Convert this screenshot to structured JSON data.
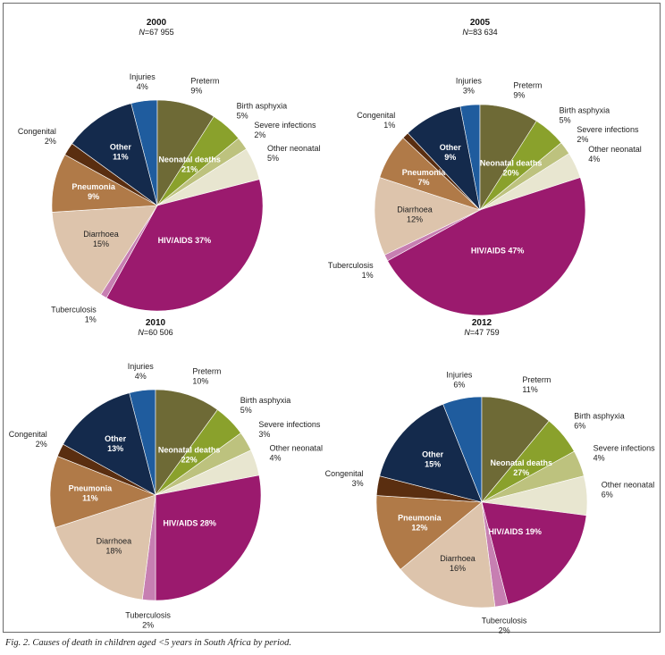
{
  "caption": "Fig. 2. Causes of death in children aged <5 years in South Africa by period.",
  "colors": {
    "Injuries": "#1f5c9e",
    "Preterm": "#6e6a36",
    "Birth asphyxia": "#8aa12c",
    "Severe infections": "#bdc27e",
    "Other neonatal": "#e8e6d0",
    "HIV/AIDS": "#9b1a6e",
    "Tuberculosis": "#c77fb2",
    "Diarrhoea": "#ddc4ac",
    "Pneumonia": "#b07a48",
    "Congenital": "#5a2e10",
    "Other": "#142a4c",
    "outline": "#ffffff"
  },
  "chart_data": [
    {
      "type": "pie",
      "title": "2000",
      "n_prefix": "N",
      "n_value": "=67 955",
      "slices": [
        {
          "name": "Injuries",
          "value": 4,
          "label": "4%"
        },
        {
          "name": "Preterm",
          "value": 9,
          "label": "9%"
        },
        {
          "name": "Birth asphyxia",
          "value": 5,
          "label": "5%"
        },
        {
          "name": "Severe infections",
          "value": 2,
          "label": "2%"
        },
        {
          "name": "Other neonatal",
          "value": 5,
          "label": "5%"
        },
        {
          "name": "HIV/AIDS",
          "value": 37,
          "label": "37%"
        },
        {
          "name": "Tuberculosis",
          "value": 1,
          "label": "1%"
        },
        {
          "name": "Diarrhoea",
          "value": 15,
          "label": "15%"
        },
        {
          "name": "Pneumonia",
          "value": 9,
          "label": "9%"
        },
        {
          "name": "Congenital",
          "value": 2,
          "label": "2%"
        },
        {
          "name": "Other",
          "value": 11,
          "label": "11%"
        }
      ],
      "group_label": {
        "name": "Neonatal deaths",
        "value": "21%"
      }
    },
    {
      "type": "pie",
      "title": "2005",
      "n_prefix": "N",
      "n_value": "=83 634",
      "slices": [
        {
          "name": "Injuries",
          "value": 3,
          "label": "3%"
        },
        {
          "name": "Preterm",
          "value": 9,
          "label": "9%"
        },
        {
          "name": "Birth asphyxia",
          "value": 5,
          "label": "5%"
        },
        {
          "name": "Severe infections",
          "value": 2,
          "label": "2%"
        },
        {
          "name": "Other neonatal",
          "value": 4,
          "label": "4%"
        },
        {
          "name": "HIV/AIDS",
          "value": 47,
          "label": "47%"
        },
        {
          "name": "Tuberculosis",
          "value": 1,
          "label": "1%"
        },
        {
          "name": "Diarrhoea",
          "value": 12,
          "label": "12%"
        },
        {
          "name": "Pneumonia",
          "value": 7,
          "label": "7%"
        },
        {
          "name": "Congenital",
          "value": 1,
          "label": "1%"
        },
        {
          "name": "Other",
          "value": 9,
          "label": "9%"
        }
      ],
      "group_label": {
        "name": "Neonatal deaths",
        "value": "20%"
      }
    },
    {
      "type": "pie",
      "title": "2010",
      "n_prefix": "N",
      "n_value": "=60 506",
      "slices": [
        {
          "name": "Injuries",
          "value": 4,
          "label": "4%"
        },
        {
          "name": "Preterm",
          "value": 10,
          "label": "10%"
        },
        {
          "name": "Birth asphyxia",
          "value": 5,
          "label": "5%"
        },
        {
          "name": "Severe infections",
          "value": 3,
          "label": "3%"
        },
        {
          "name": "Other neonatal",
          "value": 4,
          "label": "4%"
        },
        {
          "name": "HIV/AIDS",
          "value": 28,
          "label": "28%"
        },
        {
          "name": "Tuberculosis",
          "value": 2,
          "label": "2%"
        },
        {
          "name": "Diarrhoea",
          "value": 18,
          "label": "18%"
        },
        {
          "name": "Pneumonia",
          "value": 11,
          "label": "11%"
        },
        {
          "name": "Congenital",
          "value": 2,
          "label": "2%"
        },
        {
          "name": "Other",
          "value": 13,
          "label": "13%"
        }
      ],
      "group_label": {
        "name": "Neonatal deaths",
        "value": "22%"
      }
    },
    {
      "type": "pie",
      "title": "2012",
      "n_prefix": "N",
      "n_value": "=47 759",
      "slices": [
        {
          "name": "Injuries",
          "value": 6,
          "label": "6%"
        },
        {
          "name": "Preterm",
          "value": 11,
          "label": "11%"
        },
        {
          "name": "Birth asphyxia",
          "value": 6,
          "label": "6%"
        },
        {
          "name": "Severe infections",
          "value": 4,
          "label": "4%"
        },
        {
          "name": "Other neonatal",
          "value": 6,
          "label": "6%"
        },
        {
          "name": "HIV/AIDS",
          "value": 19,
          "label": "19%"
        },
        {
          "name": "Tuberculosis",
          "value": 2,
          "label": "2%"
        },
        {
          "name": "Diarrhoea",
          "value": 16,
          "label": "16%"
        },
        {
          "name": "Pneumonia",
          "value": 12,
          "label": "12%"
        },
        {
          "name": "Congenital",
          "value": 3,
          "label": "3%"
        },
        {
          "name": "Other",
          "value": 15,
          "label": "15%"
        }
      ],
      "group_label": {
        "name": "Neonatal deaths",
        "value": "27%"
      }
    }
  ]
}
